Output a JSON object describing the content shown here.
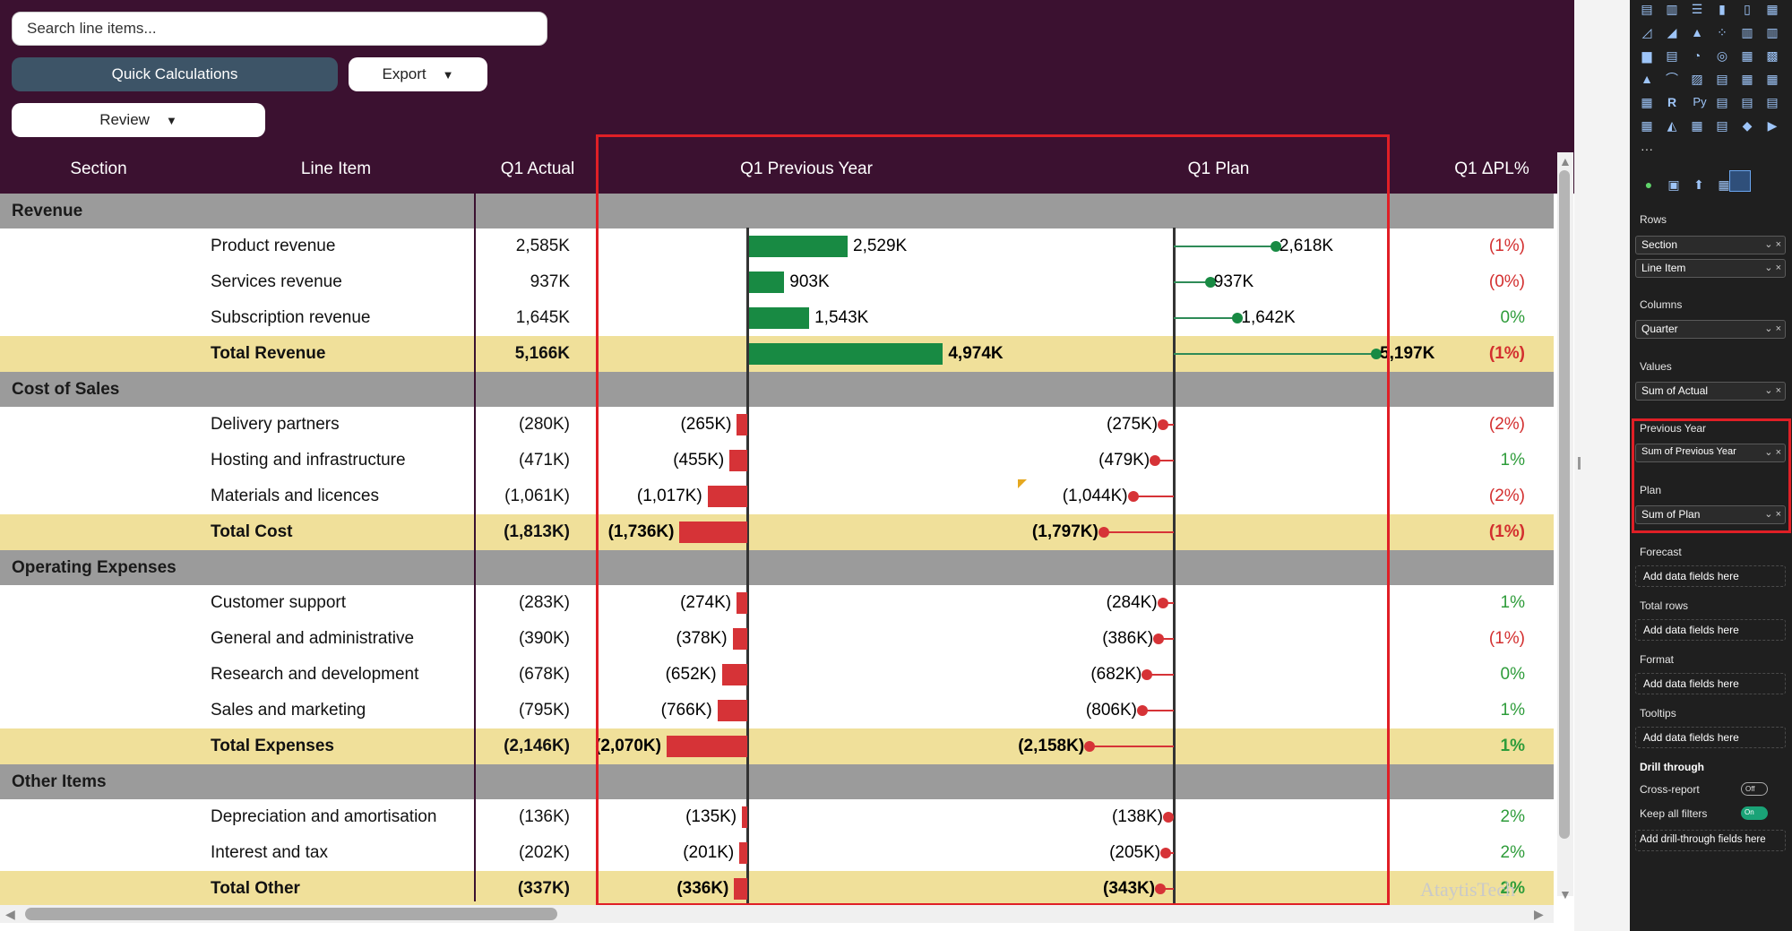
{
  "search": {
    "placeholder": "Search line items..."
  },
  "buttons": {
    "quick_calc": "Quick Calculations",
    "export": "Export",
    "review": "Review",
    "caret": "▼"
  },
  "columns": {
    "section": "Section",
    "line_item": "Line Item",
    "actual": "Q1 Actual",
    "previous_year": "Q1 Previous Year",
    "plan": "Q1 Plan",
    "delta_pl": "Q1 ΔPL%"
  },
  "table": [
    {
      "type": "section",
      "label": "Revenue"
    },
    {
      "type": "item",
      "label": "Product revenue",
      "actual": "2,585K",
      "py": "2,529K",
      "py_value": 2529,
      "plan": "2,618K",
      "plan_value": 2618,
      "delta": "(1%)",
      "delta_color": "neg"
    },
    {
      "type": "item",
      "label": "Services revenue",
      "actual": "937K",
      "py": "903K",
      "py_value": 903,
      "plan": "937K",
      "plan_value": 937,
      "delta": "(0%)",
      "delta_color": "neg"
    },
    {
      "type": "item",
      "label": "Subscription revenue",
      "actual": "1,645K",
      "py": "1,543K",
      "py_value": 1543,
      "plan": "1,642K",
      "plan_value": 1642,
      "delta": "0%",
      "delta_color": "pos"
    },
    {
      "type": "total",
      "label": "Total Revenue",
      "actual": "5,166K",
      "py": "4,974K",
      "py_value": 4974,
      "plan": "5,197K",
      "plan_value": 5197,
      "delta": "(1%)",
      "delta_color": "neg"
    },
    {
      "type": "section",
      "label": "Cost of Sales"
    },
    {
      "type": "item",
      "label": "Delivery partners",
      "actual": "(280K)",
      "py": "(265K)",
      "py_value": -265,
      "plan": "(275K)",
      "plan_value": -275,
      "delta": "(2%)",
      "delta_color": "neg"
    },
    {
      "type": "item",
      "label": "Hosting and infrastructure",
      "actual": "(471K)",
      "py": "(455K)",
      "py_value": -455,
      "plan": "(479K)",
      "plan_value": -479,
      "delta": "1%",
      "delta_color": "pos"
    },
    {
      "type": "item",
      "label": "Materials and licences",
      "actual": "(1,061K)",
      "py": "(1,017K)",
      "py_value": -1017,
      "plan": "(1,044K)",
      "plan_value": -1044,
      "delta": "(2%)",
      "delta_color": "neg"
    },
    {
      "type": "total",
      "label": "Total Cost",
      "actual": "(1,813K)",
      "py": "(1,736K)",
      "py_value": -1736,
      "plan": "(1,797K)",
      "plan_value": -1797,
      "delta": "(1%)",
      "delta_color": "neg"
    },
    {
      "type": "section",
      "label": "Operating Expenses"
    },
    {
      "type": "item",
      "label": "Customer support",
      "actual": "(283K)",
      "py": "(274K)",
      "py_value": -274,
      "plan": "(284K)",
      "plan_value": -284,
      "delta": "1%",
      "delta_color": "pos"
    },
    {
      "type": "item",
      "label": "General and administrative",
      "actual": "(390K)",
      "py": "(378K)",
      "py_value": -378,
      "plan": "(386K)",
      "plan_value": -386,
      "delta": "(1%)",
      "delta_color": "neg"
    },
    {
      "type": "item",
      "label": "Research and development",
      "actual": "(678K)",
      "py": "(652K)",
      "py_value": -652,
      "plan": "(682K)",
      "plan_value": -682,
      "delta": "0%",
      "delta_color": "pos"
    },
    {
      "type": "item",
      "label": "Sales and marketing",
      "actual": "(795K)",
      "py": "(766K)",
      "py_value": -766,
      "plan": "(806K)",
      "plan_value": -806,
      "delta": "1%",
      "delta_color": "pos"
    },
    {
      "type": "total",
      "label": "Total Expenses",
      "actual": "(2,146K)",
      "py": "(2,070K)",
      "py_value": -2070,
      "plan": "(2,158K)",
      "plan_value": -2158,
      "delta": "1%",
      "delta_color": "pos"
    },
    {
      "type": "section",
      "label": "Other Items"
    },
    {
      "type": "item",
      "label": "Depreciation and amortisation",
      "actual": "(136K)",
      "py": "(135K)",
      "py_value": -135,
      "plan": "(138K)",
      "plan_value": -138,
      "delta": "2%",
      "delta_color": "pos"
    },
    {
      "type": "item",
      "label": "Interest and tax",
      "actual": "(202K)",
      "py": "(201K)",
      "py_value": -201,
      "plan": "(205K)",
      "plan_value": -205,
      "delta": "2%",
      "delta_color": "pos"
    },
    {
      "type": "total",
      "label": "Total Other",
      "actual": "(337K)",
      "py": "(336K)",
      "py_value": -336,
      "plan": "(343K)",
      "plan_value": -343,
      "delta": "2%",
      "delta_color": "pos"
    }
  ],
  "watermark": "AtaytisTech",
  "colors": {
    "header_bg": "#3b1130",
    "section_bg": "#9b9b9b",
    "total_bg": "#f0e09a",
    "bar_positive": "#188a43",
    "bar_negative": "#d63337",
    "highlight": "#e01f26",
    "accent_button": "#3d5467"
  },
  "pane": {
    "rows_label": "Rows",
    "rows": [
      "Section",
      "Line Item"
    ],
    "columns_label": "Columns",
    "columns": [
      "Quarter"
    ],
    "values_label": "Values",
    "values": [
      "Sum of Actual"
    ],
    "previous_year_label": "Previous Year",
    "previous_year": [
      "Sum of Previous Year"
    ],
    "plan_label": "Plan",
    "plan": [
      "Sum of Plan"
    ],
    "forecast_label": "Forecast",
    "total_rows_label": "Total rows",
    "format_label": "Format",
    "tooltips_label": "Tooltips",
    "add_fields": "Add data fields here",
    "drill_label": "Drill through",
    "cross_report": "Cross-report",
    "cross_report_state": "Off",
    "keep_filters": "Keep all filters",
    "keep_filters_state": "On",
    "add_drill": "Add drill-through fields here",
    "more": "···",
    "visual_r": "R",
    "visual_py": "Py"
  }
}
